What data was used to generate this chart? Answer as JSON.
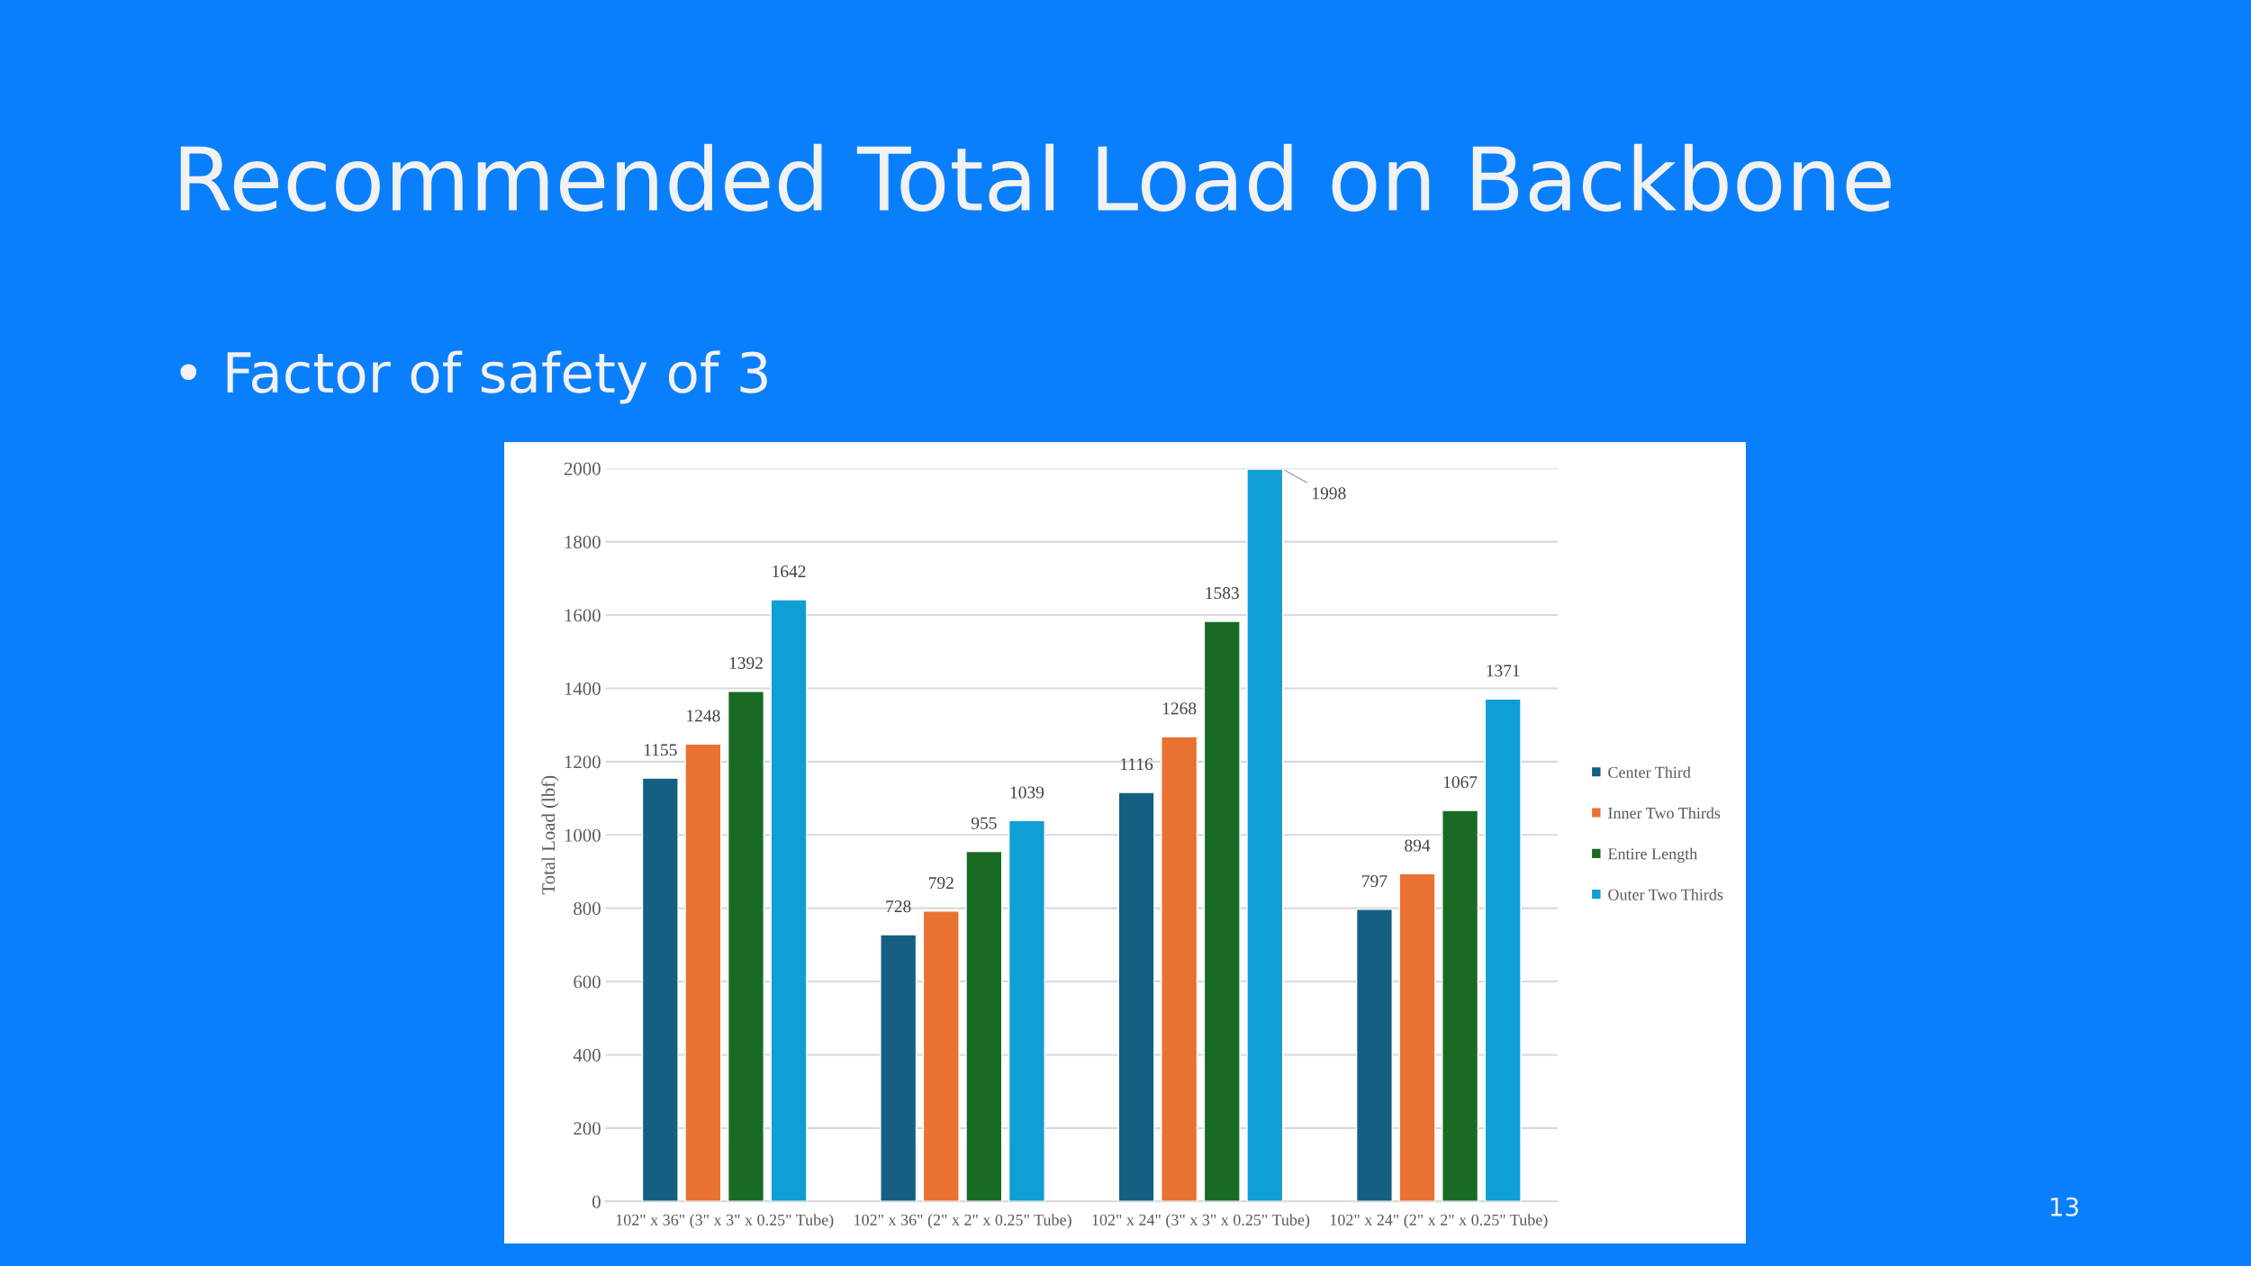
{
  "chart_data": {
    "type": "bar",
    "title": "Recommended Total Load on Backbone",
    "subtitle": "• Factor of safety of 3",
    "ylabel": "Total Load (lbf)",
    "categories": [
      "102\" x 36\" (3\" x 3\" x 0.25\" Tube)",
      "102\" x 36\" (2\" x 2\" x 0.25\" Tube)",
      "102\" x 24\" (3\" x 3\" x 0.25\" Tube)",
      "102\" x 24\" (2\" x 2\" x 0.25\" Tube)"
    ],
    "series": [
      {
        "name": "Center Third",
        "color": "#156082",
        "values": [
          1155,
          728,
          1116,
          797
        ]
      },
      {
        "name": "Inner Two Thirds",
        "color": "#e97132",
        "values": [
          1248,
          792,
          1268,
          894
        ]
      },
      {
        "name": "Entire Length",
        "color": "#196b24",
        "values": [
          1392,
          955,
          1583,
          1067
        ]
      },
      {
        "name": "Outer Two Thirds",
        "color": "#0f9ed5",
        "values": [
          1642,
          1039,
          1998,
          1371
        ]
      }
    ],
    "ylim": [
      0,
      2000
    ],
    "yticks": [
      0,
      200,
      400,
      600,
      800,
      1000,
      1200,
      1400,
      1600,
      1800,
      2000
    ],
    "grid": "y",
    "legend": "right",
    "data_labels": true,
    "annotations": [
      "13"
    ]
  }
}
